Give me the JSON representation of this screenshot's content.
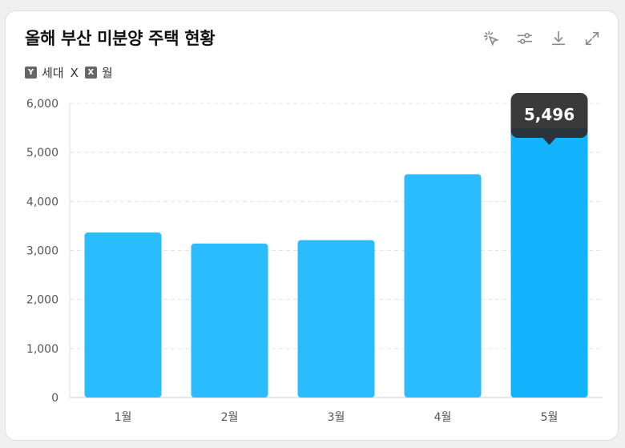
{
  "card": {
    "title": "올해 부산 미분양 주택 현황",
    "toolbar": [
      {
        "icon": "sparkle-cursor-icon"
      },
      {
        "icon": "sliders-icon"
      },
      {
        "icon": "download-icon"
      },
      {
        "icon": "expand-icon"
      }
    ],
    "axis_legend": {
      "y_badge": "Y",
      "y_label": "세대",
      "x_badge": "X",
      "x_label": "월",
      "x_prefix": "X"
    }
  },
  "colors": {
    "bar": "#2bbcfd",
    "bar_active": "#12b2fd",
    "tooltip_bg": "#2b2b2b",
    "tooltip_text": "#ffffff",
    "grid": "#e3e3e3",
    "axis_text": "#555555"
  },
  "chart_data": {
    "type": "bar",
    "categories": [
      "1월",
      "2월",
      "3월",
      "4월",
      "5월"
    ],
    "values": [
      3365,
      3140,
      3210,
      4555,
      5496
    ],
    "ylim": [
      0,
      6000
    ],
    "yticks": [
      0,
      1000,
      2000,
      3000,
      4000,
      5000,
      6000
    ],
    "ytick_labels": [
      "0",
      "1,000",
      "2,000",
      "3,000",
      "4,000",
      "5,000",
      "6,000"
    ],
    "grid": true,
    "tooltip": {
      "category_index": 4,
      "label": "5,496"
    }
  }
}
